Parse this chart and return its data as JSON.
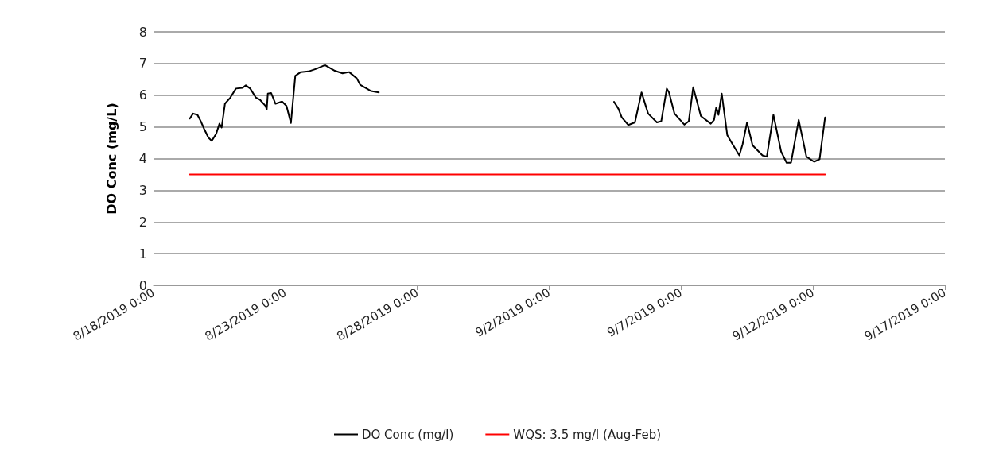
{
  "chart_data": {
    "type": "line",
    "ylabel": "DO Conc (mg/L)",
    "ylim": [
      0,
      8
    ],
    "yticks": [
      0,
      1,
      2,
      3,
      4,
      5,
      6,
      7,
      8
    ],
    "xlim": [
      "2019-08-18T00:00",
      "2019-09-17T00:00"
    ],
    "xticks": [
      {
        "value": "2019-08-18T00:00",
        "label": "8/18/2019 0:00"
      },
      {
        "value": "2019-08-23T00:00",
        "label": "8/23/2019 0:00"
      },
      {
        "value": "2019-08-28T00:00",
        "label": "8/28/2019 0:00"
      },
      {
        "value": "2019-09-02T00:00",
        "label": "9/2/2019 0:00"
      },
      {
        "value": "2019-09-07T00:00",
        "label": "9/7/2019 0:00"
      },
      {
        "value": "2019-09-12T00:00",
        "label": "9/12/2019 0:00"
      },
      {
        "value": "2019-09-17T00:00",
        "label": "9/17/2019 0:00"
      }
    ],
    "grid": "y",
    "legend": "bottom",
    "marker": "none",
    "line_style": "solid",
    "series": [
      {
        "name": "DO Conc (mg/l)",
        "color": "#000000",
        "x": [
          "2019-08-19T09:00",
          "2019-08-19T12:00",
          "2019-08-19T16:00",
          "2019-08-19T19:00",
          "2019-08-19T22:00",
          "2019-08-20T02:00",
          "2019-08-20T05:00",
          "2019-08-20T09:00",
          "2019-08-20T12:00",
          "2019-08-20T14:00",
          "2019-08-20T17:00",
          "2019-08-20T22:00",
          "2019-08-21T03:00",
          "2019-08-21T09:00",
          "2019-08-21T12:00",
          "2019-08-21T16:00",
          "2019-08-21T21:00",
          "2019-08-22T01:00",
          "2019-08-22T06:00",
          "2019-08-22T07:00",
          "2019-08-22T08:00",
          "2019-08-22T11:00",
          "2019-08-22T15:00",
          "2019-08-22T21:00",
          "2019-08-23T01:00",
          "2019-08-23T05:00",
          "2019-08-23T09:00",
          "2019-08-23T14:00",
          "2019-08-23T21:00",
          "2019-08-24T04:00",
          "2019-08-24T12:00",
          "2019-08-24T21:00",
          "2019-08-25T04:00",
          "2019-08-25T10:00",
          "2019-08-25T17:00",
          "2019-08-25T20:00",
          "2019-08-26T06:00",
          "2019-08-26T13:00",
          "2019-08-30T00:00",
          "2019-09-04T11:00",
          "2019-09-04T15:00",
          "2019-09-04T18:00",
          "2019-09-05T00:00",
          "2019-09-05T06:00",
          "2019-09-05T12:00",
          "2019-09-05T18:00",
          "2019-09-06T02:00",
          "2019-09-06T06:00",
          "2019-09-06T11:00",
          "2019-09-06T13:00",
          "2019-09-06T18:00",
          "2019-09-07T03:00",
          "2019-09-07T07:00",
          "2019-09-07T11:00",
          "2019-09-07T18:00",
          "2019-09-08T03:00",
          "2019-09-08T06:00",
          "2019-09-08T08:00",
          "2019-09-08T10:00",
          "2019-09-08T13:00",
          "2019-09-08T18:00",
          "2019-09-08T22:00",
          "2019-09-09T05:00",
          "2019-09-09T08:00",
          "2019-09-09T12:00",
          "2019-09-09T17:00",
          "2019-09-10T02:00",
          "2019-09-10T06:00",
          "2019-09-10T12:00",
          "2019-09-10T19:00",
          "2019-09-11T00:00",
          "2019-09-11T04:00",
          "2019-09-11T11:00",
          "2019-09-11T18:00",
          "2019-09-12T01:00",
          "2019-09-12T06:00",
          "2019-09-12T11:00"
        ],
        "values": [
          5.26,
          5.42,
          5.38,
          5.18,
          4.94,
          4.66,
          4.56,
          4.78,
          5.1,
          4.98,
          5.73,
          5.93,
          6.21,
          6.23,
          6.31,
          6.21,
          5.93,
          5.85,
          5.66,
          5.54,
          6.05,
          6.07,
          5.73,
          5.8,
          5.66,
          5.12,
          6.61,
          6.73,
          6.75,
          6.83,
          6.95,
          6.77,
          6.69,
          6.73,
          6.53,
          6.33,
          6.13,
          6.09,
          null,
          5.79,
          5.57,
          5.3,
          5.06,
          5.14,
          6.09,
          5.42,
          5.14,
          5.18,
          6.21,
          6.09,
          5.42,
          5.07,
          5.18,
          6.25,
          5.34,
          5.1,
          5.22,
          5.62,
          5.38,
          6.05,
          4.74,
          4.5,
          4.1,
          4.46,
          5.14,
          4.42,
          4.1,
          4.06,
          5.38,
          4.22,
          3.87,
          3.87,
          5.22,
          4.06,
          3.9,
          3.98,
          5.3
        ]
      },
      {
        "name": "WQS: 3.5 mg/l (Aug-Feb)",
        "color": "#ff0000",
        "x": [
          "2019-08-19T09:00",
          "2019-09-12T11:00"
        ],
        "values": [
          3.5,
          3.5
        ]
      }
    ]
  }
}
